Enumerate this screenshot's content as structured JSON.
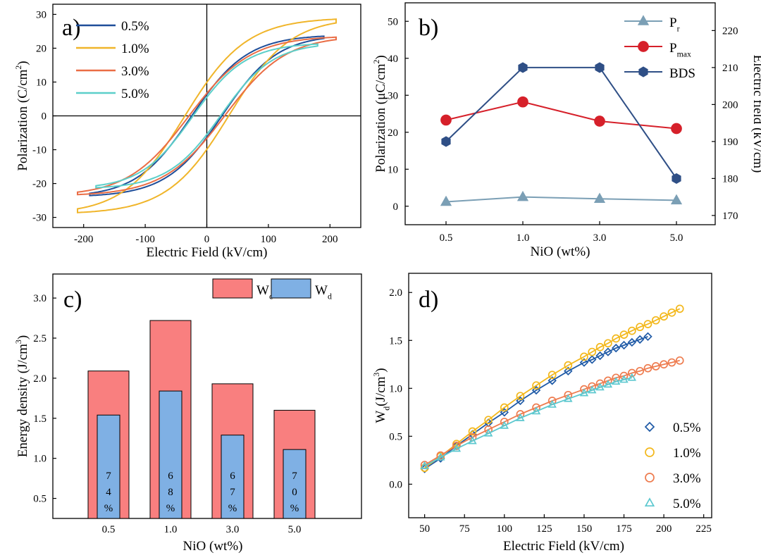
{
  "chart_data": [
    {
      "panel": "a)",
      "type": "line",
      "xlabel": "Electric Field (kV/cm)",
      "ylabel": "Polarization (C/cm",
      "ylabel_sup": "2",
      "ylabel_end": ")",
      "xlim": [
        -250,
        250
      ],
      "ylim": [
        -33,
        33
      ],
      "xticks": [
        -200,
        -100,
        0,
        100,
        200
      ],
      "yticks": [
        -30,
        -20,
        -10,
        0,
        10,
        20,
        30
      ],
      "legend_placement": "top-left",
      "series": [
        {
          "name": "0.5%",
          "color": "#1f4e99",
          "Emax": 190,
          "Pmax": 23.3,
          "Pr": 1.2,
          "Ec": 22
        },
        {
          "name": "1.0%",
          "color": "#f0b52a",
          "Emax": 210,
          "Pmax": 28.2,
          "Pr": 2.5,
          "Ec": 32
        },
        {
          "name": "3.0%",
          "color": "#ea6d45",
          "Emax": 210,
          "Pmax": 23.0,
          "Pr": 2.0,
          "Ec": 26
        },
        {
          "name": "5.0%",
          "color": "#5ccfc9",
          "Emax": 180,
          "Pmax": 21.0,
          "Pr": 1.6,
          "Ec": 20
        }
      ]
    },
    {
      "panel": "b)",
      "type": "line",
      "xlabel": "NiO (wt%)",
      "ylabel_left": "Polarization (μC/cm",
      "ylabel_left_sup": "2",
      "ylabel_left_end": ")",
      "ylabel_right": "Electric field (kV/cm)",
      "categories": [
        "0.5",
        "1.0",
        "3.0",
        "5.0"
      ],
      "ylim_left": [
        -5,
        55
      ],
      "ylim_right": [
        167.5,
        227.5
      ],
      "yticks_left": [
        0,
        10,
        20,
        30,
        40,
        50
      ],
      "yticks_right": [
        170,
        180,
        190,
        200,
        210,
        220
      ],
      "legend_placement": "top-right",
      "series": [
        {
          "name": "P",
          "sub": "r",
          "axis": "left",
          "marker": "triangle",
          "color": "#7b9fb5",
          "values": [
            1.2,
            2.5,
            2.0,
            1.6
          ]
        },
        {
          "name": "P",
          "sub": "max",
          "axis": "left",
          "marker": "circle",
          "color": "#d6202a",
          "values": [
            23.3,
            28.2,
            23.0,
            21.0
          ]
        },
        {
          "name": "BDS",
          "sub": "",
          "axis": "right",
          "marker": "hexagon",
          "color": "#2f4f86",
          "values": [
            190,
            210,
            210,
            180
          ]
        }
      ]
    },
    {
      "panel": "c)",
      "type": "bar",
      "xlabel": "NiO (wt%)",
      "ylabel": "Energy density (J/cm",
      "ylabel_sup": "3",
      "ylabel_end": ")",
      "categories": [
        "0.5",
        "1.0",
        "3.0",
        "5.0"
      ],
      "ylim": [
        0.25,
        3.3
      ],
      "yticks": [
        "0.5",
        "1.0",
        "1.5",
        "2.0",
        "2.5",
        "3.0"
      ],
      "legend_placement": "top-right",
      "series": [
        {
          "name": "W",
          "sub": "c",
          "color": "#f97f7f",
          "values": [
            2.09,
            2.72,
            1.93,
            1.6
          ]
        },
        {
          "name": "W",
          "sub": "d",
          "color": "#7fb0e4",
          "values": [
            1.54,
            1.84,
            1.29,
            1.11
          ]
        }
      ],
      "efficiency_labels": [
        [
          "7",
          "4",
          "%"
        ],
        [
          "6",
          "8",
          "%"
        ],
        [
          "6",
          "7",
          "%"
        ],
        [
          "7",
          "0",
          "%"
        ]
      ],
      "efficiency_color": "#2a8b8b"
    },
    {
      "panel": "d)",
      "type": "scatter",
      "xlabel": "Electric Field (kV/cm)",
      "ylabel": "W",
      "ylabel_sub": "d",
      "ylabel_rest": "(J/cm",
      "ylabel_sup": "3",
      "ylabel_end": ")",
      "xlim": [
        40,
        230
      ],
      "ylim": [
        -0.35,
        2.2
      ],
      "xticks": [
        50,
        75,
        100,
        125,
        150,
        175,
        200,
        225
      ],
      "yticks": [
        "0.0",
        "0.5",
        "1.0",
        "1.5",
        "2.0"
      ],
      "legend_placement": "bottom-right",
      "series": [
        {
          "name": "0.5%",
          "marker": "diamond",
          "color": "#1f5aa6",
          "x": [
            50,
            60,
            70,
            80,
            90,
            100,
            110,
            120,
            130,
            140,
            150,
            155,
            160,
            165,
            170,
            175,
            180,
            185,
            190
          ],
          "y": [
            0.16,
            0.27,
            0.4,
            0.52,
            0.64,
            0.75,
            0.87,
            0.98,
            1.08,
            1.18,
            1.27,
            1.3,
            1.34,
            1.38,
            1.42,
            1.45,
            1.48,
            1.51,
            1.54
          ]
        },
        {
          "name": "1.0%",
          "marker": "circle",
          "color": "#f3b81c",
          "x": [
            50,
            60,
            70,
            80,
            90,
            100,
            110,
            120,
            130,
            140,
            150,
            155,
            160,
            165,
            170,
            175,
            180,
            185,
            190,
            195,
            200,
            205,
            210
          ],
          "y": [
            0.17,
            0.29,
            0.42,
            0.55,
            0.67,
            0.8,
            0.92,
            1.03,
            1.14,
            1.24,
            1.33,
            1.38,
            1.43,
            1.47,
            1.52,
            1.56,
            1.6,
            1.64,
            1.67,
            1.71,
            1.75,
            1.79,
            1.83
          ]
        },
        {
          "name": "3.0%",
          "marker": "circle",
          "color": "#ee7c4f",
          "x": [
            50,
            60,
            70,
            80,
            90,
            100,
            110,
            120,
            130,
            140,
            150,
            155,
            160,
            165,
            170,
            175,
            180,
            185,
            190,
            195,
            200,
            205,
            210
          ],
          "y": [
            0.2,
            0.3,
            0.4,
            0.49,
            0.57,
            0.65,
            0.73,
            0.8,
            0.87,
            0.93,
            0.99,
            1.02,
            1.05,
            1.08,
            1.11,
            1.13,
            1.16,
            1.18,
            1.21,
            1.23,
            1.25,
            1.27,
            1.29
          ]
        },
        {
          "name": "5.0%",
          "marker": "triangle",
          "color": "#5cc8cf",
          "x": [
            50,
            60,
            70,
            80,
            90,
            100,
            110,
            120,
            130,
            140,
            150,
            155,
            160,
            165,
            170,
            175,
            180
          ],
          "y": [
            0.19,
            0.28,
            0.37,
            0.45,
            0.53,
            0.61,
            0.69,
            0.76,
            0.83,
            0.89,
            0.95,
            0.98,
            1.01,
            1.04,
            1.07,
            1.09,
            1.11
          ]
        }
      ]
    }
  ]
}
